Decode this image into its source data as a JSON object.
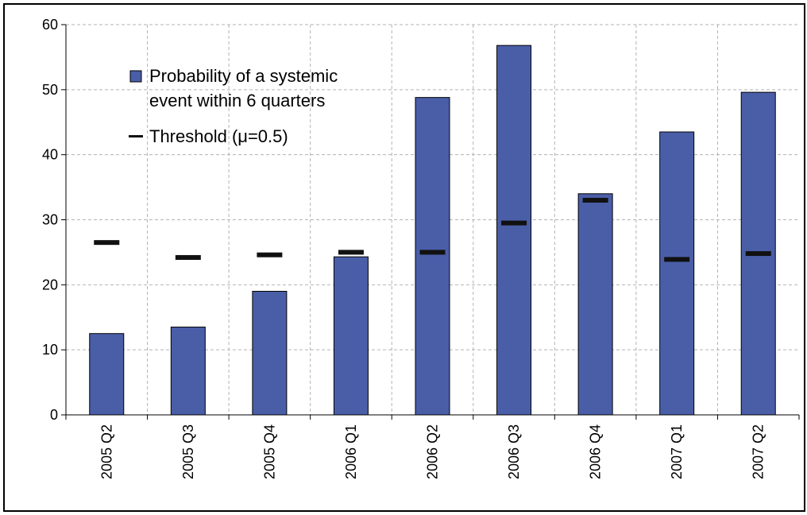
{
  "chart_data": {
    "type": "bar",
    "categories": [
      "2005 Q2",
      "2005 Q3",
      "2005 Q4",
      "2006 Q1",
      "2006 Q2",
      "2006 Q3",
      "2006 Q4",
      "2007 Q1",
      "2007 Q2"
    ],
    "series": [
      {
        "name": "Probability of a systemic event within 6 quarters",
        "legend_lines": [
          "Probability of a systemic",
          "event within 6 quarters"
        ],
        "type": "bar",
        "color": "#4a5ea8",
        "values": [
          12.5,
          13.5,
          19.0,
          24.3,
          48.8,
          56.8,
          34.0,
          43.5,
          49.6
        ]
      },
      {
        "name": "Threshold (μ=0.5)",
        "type": "marker",
        "color": "#111111",
        "values": [
          26.5,
          24.2,
          24.6,
          25.0,
          25.0,
          29.5,
          33.0,
          23.9,
          24.8
        ]
      }
    ],
    "yticks": [
      0,
      10,
      20,
      30,
      40,
      50,
      60
    ],
    "ylim": [
      0,
      60
    ],
    "title": "",
    "xlabel": "",
    "ylabel": "",
    "grid": true,
    "legend_position": "top-left"
  }
}
